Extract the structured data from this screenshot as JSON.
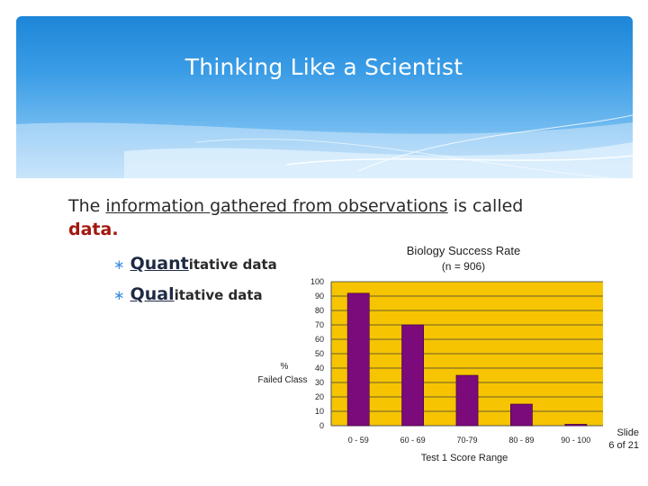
{
  "slide": {
    "title": "Thinking Like a Scientist",
    "intro_prefix": "The ",
    "intro_link": "information gathered from observations",
    "intro_suffix": " is called",
    "intro_term": "data.",
    "bullets": [
      {
        "mark": "∗",
        "strong": "Quant",
        "rest": "itative data"
      },
      {
        "mark": "∗",
        "strong": "Qual",
        "rest": "itative data"
      }
    ],
    "slide_number_label": "Slide",
    "slide_number": "6 of 21"
  },
  "colors": {
    "banner_top": "#1d86d8",
    "plot_background": "#f6c400",
    "bar_fill": "#7b0a7b",
    "term_red": "#a3170f"
  },
  "chart_data": {
    "type": "bar",
    "title": "Biology Success Rate",
    "subtitle": "(n = 906)",
    "xlabel": "Test 1 Score Range",
    "ylabel_line1": "%",
    "ylabel_line2": "Failed Class",
    "categories": [
      "0 - 59",
      "60 - 69",
      "70-79",
      "80 - 89",
      "90 - 100"
    ],
    "values": [
      92,
      70,
      35,
      15,
      1
    ],
    "ylim": [
      0,
      100
    ],
    "yticks": [
      0,
      10,
      20,
      30,
      40,
      50,
      60,
      70,
      80,
      90,
      100
    ],
    "grid": true,
    "legend": "none"
  }
}
